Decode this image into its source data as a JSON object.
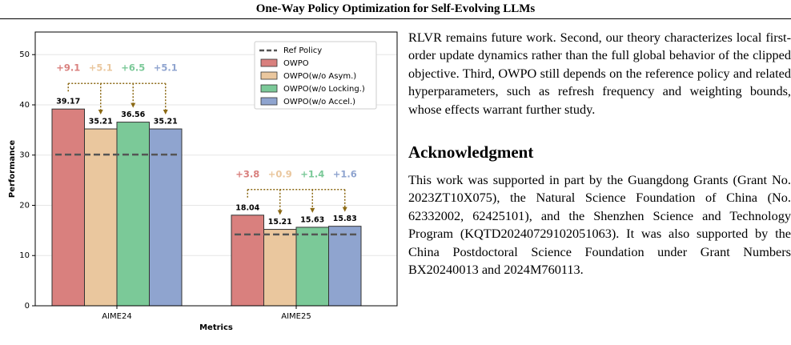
{
  "header": {
    "title": "One-Way Policy Optimization for Self-Evolving LLMs"
  },
  "chart_data": {
    "type": "bar",
    "xlabel": "Metrics",
    "ylabel": "Performance",
    "categories": [
      "AIME24",
      "AIME25"
    ],
    "series": [
      {
        "name": "OWPO",
        "color": "#d9807e",
        "values": [
          39.17,
          18.04
        ]
      },
      {
        "name": "OWPO(w/o Asym.)",
        "color": "#eac79e",
        "values": [
          35.21,
          15.21
        ]
      },
      {
        "name": "OWPO(w/o Locking.)",
        "color": "#7bc998",
        "values": [
          36.56,
          15.63
        ]
      },
      {
        "name": "OWPO(w/o Accel.)",
        "color": "#8fa4cf",
        "values": [
          35.21,
          15.83
        ]
      }
    ],
    "reference": {
      "name": "Ref Policy",
      "color": "#555555",
      "values": [
        30.1,
        14.2
      ]
    },
    "annotations": [
      [
        "+9.1",
        "+5.1",
        "+6.5",
        "+5.1"
      ],
      [
        "+3.8",
        "+0.9",
        "+1.4",
        "+1.6"
      ]
    ],
    "ylim": [
      0,
      54.5
    ],
    "yticks": [
      0,
      10,
      20,
      30,
      40,
      50
    ],
    "grid": true,
    "legend": "upper right"
  },
  "body": {
    "paragraph1": "RLVR remains future work. Second, our theory characterizes local first-order update dynamics rather than the full global behavior of the clipped objective. Third, OWPO still depends on the reference policy and related hyperparameters, such as refresh frequency and weighting bounds, whose effects warrant further study.",
    "heading": "Acknowledgment",
    "paragraph2": "This work was supported in part by the Guangdong Grants (Grant No. 2023ZT10X075), the Natural Science Foundation of China (No. 62332002, 62425101), and the Shenzhen Science and Technology Program (KQTD20240729102051063). It was also supported by the China Postdoctoral Science Foundation under Grant Numbers BX20240013 and 2024M760113."
  }
}
